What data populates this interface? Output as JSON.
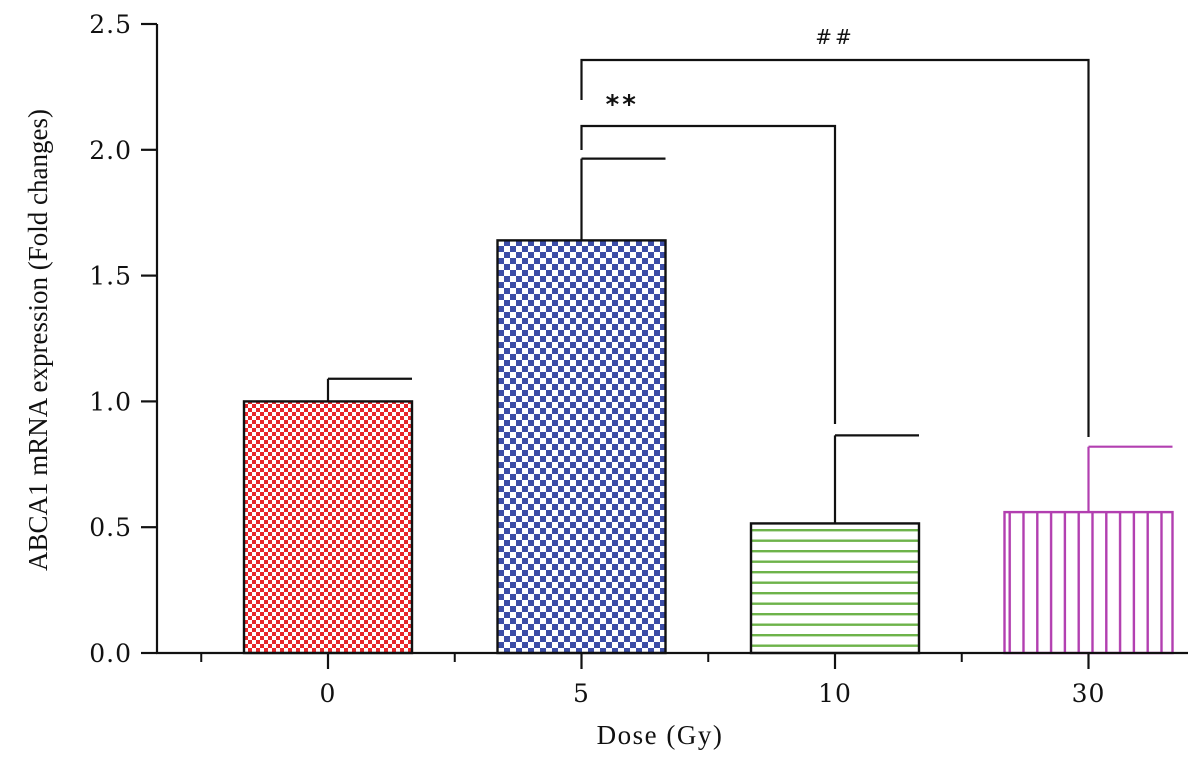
{
  "chart_data": {
    "type": "bar",
    "xlabel": "Dose (Gy)",
    "ylabel": "ABCA1 mRNA expression (Fold changes)",
    "categories": [
      "0",
      "5",
      "10",
      "30"
    ],
    "values": [
      1.0,
      1.64,
      0.515,
      0.56
    ],
    "error_upper": [
      1.09,
      1.965,
      0.865,
      0.82
    ],
    "ylim": [
      0,
      2.5
    ],
    "yticks": [
      "0.0",
      "0.5",
      "1.0",
      "1.5",
      "2.0",
      "2.5"
    ],
    "grid": false,
    "legend": "none",
    "bar_styles": [
      {
        "category": "0",
        "pattern": "checkerboard",
        "color": "#e8262a"
      },
      {
        "category": "5",
        "pattern": "checkerboard",
        "color": "#3c4da6"
      },
      {
        "category": "10",
        "pattern": "horizontal-stripes",
        "color": "#6db34a"
      },
      {
        "category": "30",
        "pattern": "vertical-stripes",
        "color": "#b23fb0"
      }
    ],
    "annotations": [
      {
        "label": "**",
        "from": "5",
        "to": "10"
      },
      {
        "label": "##",
        "from": "5",
        "to": "30"
      }
    ]
  }
}
